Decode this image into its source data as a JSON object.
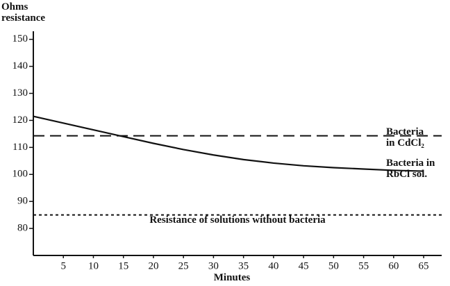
{
  "chart_data": {
    "type": "line",
    "ylabel": "Ohms resistance",
    "xlabel": "Minutes",
    "xlim": [
      0,
      68
    ],
    "ylim": [
      70,
      153
    ],
    "xticks": [
      5,
      10,
      15,
      20,
      25,
      30,
      35,
      40,
      45,
      50,
      55,
      60,
      65
    ],
    "yticks": [
      80,
      90,
      100,
      110,
      120,
      130,
      140,
      150
    ],
    "series": [
      {
        "name": "Bacteria in CdCl₂",
        "color": "#111111",
        "style": "dashed",
        "x": [
          0,
          68
        ],
        "values": [
          114.3,
          114.3
        ]
      },
      {
        "name": "Bacteria in RbCl sol.",
        "color": "#111111",
        "style": "solid",
        "x": [
          0,
          5,
          10,
          15,
          20,
          25,
          30,
          35,
          40,
          45,
          50,
          55,
          60,
          65
        ],
        "values": [
          121.5,
          119,
          116.5,
          114,
          111.5,
          109.2,
          107.2,
          105.5,
          104.2,
          103.2,
          102.5,
          102,
          101.5,
          101.2
        ]
      },
      {
        "name": "Resistance of solutions without bacteria",
        "color": "#111111",
        "style": "dotted",
        "x": [
          0,
          68
        ],
        "values": [
          85,
          85
        ]
      }
    ]
  }
}
